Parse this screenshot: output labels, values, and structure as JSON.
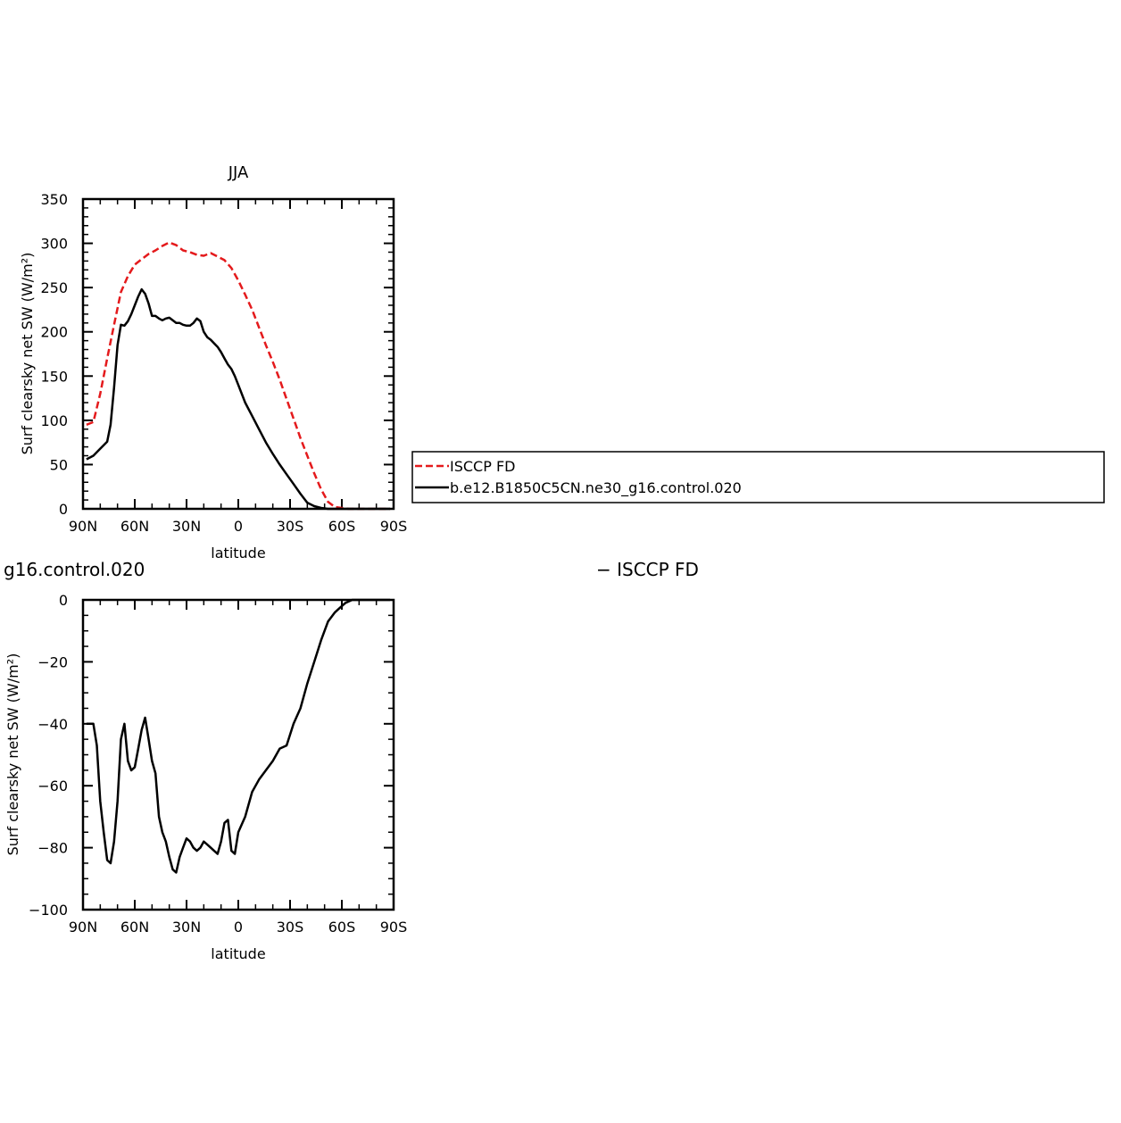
{
  "legend": {
    "items": [
      {
        "label": "ISCCP FD",
        "color": "#e41a1c",
        "dash": true
      },
      {
        "label": "b.e12.B1850C5CN.ne30_g16.control.020",
        "color": "#000000",
        "dash": false
      }
    ]
  },
  "chart_data": [
    {
      "type": "line",
      "title": "JJA",
      "xlabel": "latitude",
      "ylabel": "Surf clearsky net SW (W/m²)",
      "xlim": [
        90,
        -90
      ],
      "ylim": [
        0,
        350
      ],
      "xticks": [
        90,
        60,
        30,
        0,
        -30,
        -60,
        -90
      ],
      "xtick_labels": [
        "90N",
        "60N",
        "30N",
        "0",
        "30S",
        "60S",
        "90S"
      ],
      "yticks": [
        0,
        50,
        100,
        150,
        200,
        250,
        300,
        350
      ],
      "ytick_labels": [
        "0",
        "50",
        "100",
        "150",
        "200",
        "250",
        "300",
        "350"
      ],
      "series": [
        {
          "name": "ISCCP FD",
          "color": "#e41a1c",
          "dash": true,
          "x": [
            88,
            84,
            80,
            76,
            72,
            68,
            64,
            60,
            56,
            52,
            48,
            44,
            40,
            36,
            32,
            28,
            24,
            20,
            16,
            12,
            8,
            4,
            0,
            -4,
            -8,
            -12,
            -16,
            -20,
            -24,
            -28,
            -32,
            -36,
            -40,
            -44,
            -48,
            -52,
            -56,
            -60,
            -64,
            -68,
            -72,
            -76,
            -80,
            -84,
            -88
          ],
          "values": [
            95,
            98,
            130,
            170,
            208,
            245,
            263,
            276,
            282,
            288,
            292,
            297,
            301,
            298,
            292,
            290,
            287,
            286,
            289,
            285,
            281,
            272,
            258,
            242,
            225,
            205,
            185,
            166,
            146,
            124,
            102,
            80,
            60,
            40,
            22,
            8,
            2,
            1,
            0,
            0,
            0,
            0,
            0,
            0,
            0
          ]
        },
        {
          "name": "b.e12.B1850C5CN.ne30_g16.control.020",
          "color": "#000000",
          "dash": false,
          "x": [
            88,
            84,
            80,
            76,
            74,
            72,
            70,
            68,
            66,
            64,
            62,
            60,
            58,
            56,
            54,
            52,
            50,
            48,
            46,
            44,
            42,
            40,
            38,
            36,
            34,
            32,
            30,
            28,
            26,
            24,
            22,
            20,
            18,
            16,
            14,
            12,
            10,
            8,
            6,
            4,
            2,
            0,
            -4,
            -8,
            -12,
            -16,
            -20,
            -24,
            -28,
            -32,
            -36,
            -40,
            -44,
            -48,
            -52,
            -56,
            -60,
            -62,
            -64,
            -66,
            -68,
            -70,
            -74,
            -78,
            -82,
            -86,
            -88
          ],
          "values": [
            56,
            60,
            68,
            76,
            95,
            137,
            185,
            208,
            207,
            212,
            220,
            230,
            240,
            248,
            243,
            232,
            218,
            218,
            215,
            213,
            215,
            216,
            213,
            210,
            210,
            208,
            207,
            207,
            210,
            215,
            212,
            200,
            194,
            191,
            187,
            183,
            177,
            170,
            163,
            158,
            150,
            140,
            120,
            105,
            90,
            75,
            62,
            50,
            39,
            28,
            17,
            7,
            3,
            1,
            0,
            0,
            0,
            0,
            0,
            0,
            0,
            0,
            0,
            0,
            0,
            0,
            0
          ]
        }
      ]
    },
    {
      "type": "line",
      "title": "g16.control.020",
      "title_right": "− ISCCP FD",
      "xlabel": "latitude",
      "ylabel": "Surf clearsky net SW (W/m²)",
      "xlim": [
        90,
        -90
      ],
      "ylim": [
        -100,
        0
      ],
      "xticks": [
        90,
        60,
        30,
        0,
        -30,
        -60,
        -90
      ],
      "xtick_labels": [
        "90N",
        "60N",
        "30N",
        "0",
        "30S",
        "60S",
        "90S"
      ],
      "yticks": [
        0,
        -20,
        -40,
        -60,
        -80,
        -100
      ],
      "ytick_labels": [
        "0",
        "−20",
        "−40",
        "−60",
        "−80",
        "−100"
      ],
      "series": [
        {
          "name": "",
          "color": "#000000",
          "dash": false,
          "x": [
            88,
            84,
            82,
            80,
            78,
            76,
            74,
            72,
            70,
            68,
            66,
            64,
            62,
            60,
            58,
            56,
            54,
            52,
            50,
            48,
            46,
            44,
            42,
            40,
            38,
            36,
            34,
            32,
            30,
            28,
            26,
            24,
            22,
            20,
            18,
            16,
            14,
            12,
            10,
            8,
            6,
            4,
            2,
            0,
            -4,
            -8,
            -12,
            -16,
            -20,
            -24,
            -28,
            -32,
            -36,
            -40,
            -44,
            -48,
            -52,
            -56,
            -58,
            -60,
            -62,
            -64,
            -66,
            -68,
            -70,
            -74,
            -78,
            -82,
            -86,
            -88
          ],
          "values": [
            -40,
            -40,
            -47,
            -65,
            -75,
            -84,
            -85,
            -78,
            -65,
            -45,
            -40,
            -52,
            -55,
            -54,
            -48,
            -42,
            -38,
            -45,
            -52,
            -56,
            -70,
            -75,
            -78,
            -83,
            -87,
            -88,
            -83,
            -80,
            -77,
            -78,
            -80,
            -81,
            -80,
            -78,
            -79,
            -80,
            -81,
            -82,
            -78,
            -72,
            -71,
            -81,
            -82,
            -75,
            -70,
            -62,
            -58,
            -55,
            -52,
            -48,
            -47,
            -40,
            -35,
            -27,
            -20,
            -13,
            -7,
            -4,
            -3,
            -2,
            -1,
            -0.5,
            0,
            0,
            0,
            0,
            0,
            0,
            0,
            0
          ]
        }
      ]
    }
  ]
}
